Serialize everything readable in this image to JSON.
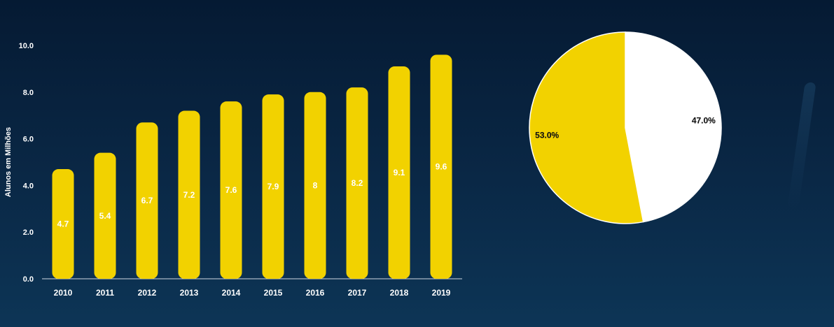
{
  "chart_data": [
    {
      "type": "bar",
      "ylabel": "Alunos em Milhões",
      "ylim": [
        0,
        10
      ],
      "yticks": [
        "0.0",
        "2.0",
        "4.0",
        "6.0",
        "8.0",
        "10.0"
      ],
      "categories": [
        "2010",
        "2011",
        "2012",
        "2013",
        "2014",
        "2015",
        "2016",
        "2017",
        "2018",
        "2019"
      ],
      "values": [
        4.7,
        5.4,
        6.7,
        7.2,
        7.6,
        7.9,
        8,
        8.2,
        9.1,
        9.6
      ],
      "value_labels": [
        "4.7",
        "5.4",
        "6.7",
        "7.2",
        "7.6",
        "7.9",
        "8",
        "8.2",
        "9.1",
        "9.6"
      ],
      "grid": false,
      "colors": {
        "bar": "#f2d200",
        "axis": "#cfd8e3",
        "text": "#ffffff"
      }
    },
    {
      "type": "pie",
      "slices": [
        {
          "label": "47.0%",
          "value": 47.0,
          "color": "#ffffff"
        },
        {
          "label": "53.0%",
          "value": 53.0,
          "color": "#f2d200"
        }
      ],
      "start": "top",
      "direction": "clockwise"
    }
  ]
}
